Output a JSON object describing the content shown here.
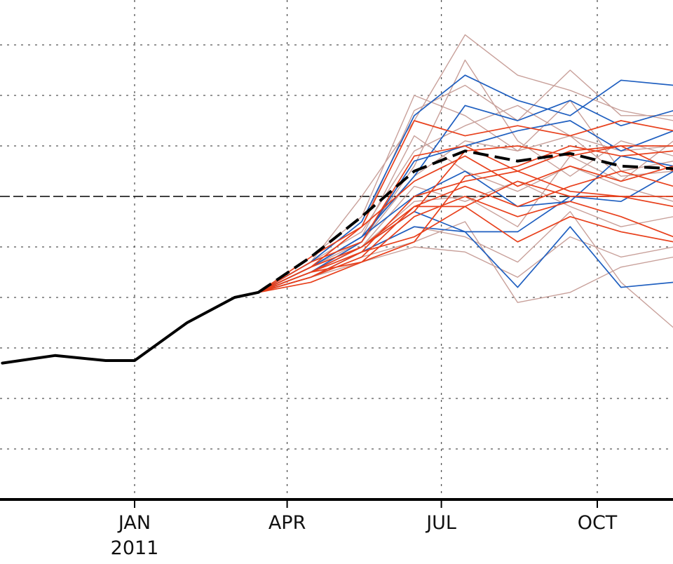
{
  "chart_data": {
    "type": "line",
    "title": "",
    "xlabel": "",
    "ylabel": "",
    "x_tick_labels": [
      {
        "month": "2011-01",
        "label": "JAN",
        "sublabel": "2011"
      },
      {
        "month": "2011-04",
        "label": "APR",
        "sublabel": ""
      },
      {
        "month": "2011-07",
        "label": "JUL",
        "sublabel": ""
      },
      {
        "month": "2011-10",
        "label": "OCT",
        "sublabel": ""
      }
    ],
    "grid": true,
    "reference_line_y": 0,
    "ylim": [
      -6,
      3
    ],
    "colors": {
      "observed": "#000000",
      "ensemble_mean": "#000000",
      "warm_members": "#e8401c",
      "cold_members": "#1f5fc0",
      "neutral_members": "#c8a09a",
      "grid": "#555555"
    },
    "observed": {
      "x": [
        "2010-10-15",
        "2010-11-15",
        "2010-12-15",
        "2011-01-01",
        "2011-02-01",
        "2011-03-01",
        "2011-03-15"
      ],
      "y": [
        -3.3,
        -3.15,
        -3.25,
        -3.25,
        -2.5,
        -2.0,
        -1.9
      ]
    },
    "ensemble_mean": {
      "x": [
        "2011-03-15",
        "2011-04-15",
        "2011-05-15",
        "2011-06-15",
        "2011-07-15",
        "2011-08-15",
        "2011-09-15",
        "2011-10-15",
        "2011-11-15"
      ],
      "y": [
        -1.9,
        -1.2,
        -0.4,
        0.5,
        0.9,
        0.7,
        0.85,
        0.6,
        0.55
      ]
    },
    "members": [
      {
        "group": "warm",
        "y": [
          -1.2,
          -0.6,
          1.5,
          1.2,
          1.4,
          1.2,
          1.5,
          1.3
        ]
      },
      {
        "group": "warm",
        "y": [
          -1.3,
          -0.9,
          0.8,
          1.0,
          0.5,
          0.9,
          1.0,
          1.0
        ]
      },
      {
        "group": "warm",
        "y": [
          -1.4,
          -1.0,
          -0.3,
          0.9,
          1.0,
          0.8,
          1.0,
          0.5
        ]
      },
      {
        "group": "warm",
        "y": [
          -1.5,
          -1.1,
          0.0,
          0.3,
          0.5,
          0.1,
          0.0,
          -0.2
        ]
      },
      {
        "group": "warm",
        "y": [
          -1.5,
          -1.3,
          -0.4,
          0.0,
          -0.4,
          -0.1,
          -0.4,
          -0.8
        ]
      },
      {
        "group": "warm",
        "y": [
          -1.6,
          -1.1,
          -0.8,
          -0.2,
          -0.9,
          -0.4,
          -0.7,
          -0.9
        ]
      },
      {
        "group": "warm",
        "y": [
          -1.5,
          -1.0,
          -0.2,
          0.2,
          -0.2,
          0.2,
          0.5,
          0.2
        ]
      },
      {
        "group": "warm",
        "y": [
          -1.4,
          -0.6,
          0.3,
          0.8,
          0.2,
          0.6,
          0.3,
          0.6
        ]
      },
      {
        "group": "warm",
        "y": [
          -1.6,
          -1.2,
          -0.2,
          -0.2,
          0.3,
          0.0,
          0.0,
          0.0
        ]
      },
      {
        "group": "warm",
        "y": [
          -1.7,
          -1.3,
          -0.9,
          0.4,
          0.6,
          1.0,
          0.8,
          0.9
        ]
      },
      {
        "group": "cold",
        "y": [
          -1.3,
          -0.5,
          1.6,
          2.4,
          1.9,
          1.6,
          2.3,
          2.2
        ]
      },
      {
        "group": "cold",
        "y": [
          -1.4,
          -0.8,
          0.4,
          1.8,
          1.5,
          1.9,
          1.4,
          1.7
        ]
      },
      {
        "group": "cold",
        "y": [
          -1.5,
          -1.0,
          -0.3,
          -0.7,
          -1.8,
          -0.6,
          -1.8,
          -1.7
        ]
      },
      {
        "group": "cold",
        "y": [
          -1.6,
          -1.1,
          -0.6,
          -0.7,
          -0.7,
          0.0,
          -0.1,
          0.5
        ]
      },
      {
        "group": "cold",
        "y": [
          -1.4,
          -0.8,
          0.0,
          0.5,
          -0.2,
          -0.1,
          0.8,
          0.6
        ]
      },
      {
        "group": "cold",
        "y": [
          -1.5,
          -0.9,
          0.7,
          1.0,
          1.3,
          1.5,
          0.9,
          1.3
        ]
      },
      {
        "group": "neutral",
        "y": [
          -1.3,
          0.0,
          1.5,
          3.2,
          2.4,
          2.1,
          1.7,
          1.5
        ]
      },
      {
        "group": "neutral",
        "y": [
          -1.2,
          -0.6,
          1.7,
          2.2,
          1.5,
          2.5,
          1.6,
          1.6
        ]
      },
      {
        "group": "neutral",
        "y": [
          -1.4,
          -0.9,
          0.4,
          1.1,
          0.9,
          1.2,
          0.4,
          0.5
        ]
      },
      {
        "group": "neutral",
        "y": [
          -1.5,
          -1.1,
          -0.6,
          -0.8,
          -1.3,
          -0.3,
          -1.7,
          -2.6
        ]
      },
      {
        "group": "neutral",
        "y": [
          -1.6,
          -1.2,
          -0.9,
          -0.5,
          -2.1,
          -1.9,
          -1.4,
          -1.2
        ]
      },
      {
        "group": "neutral",
        "y": [
          -1.3,
          -0.7,
          0.9,
          1.4,
          1.8,
          1.2,
          0.9,
          1.0
        ]
      },
      {
        "group": "neutral",
        "y": [
          -1.5,
          -1.0,
          0.2,
          -0.1,
          0.3,
          -0.2,
          -0.6,
          -0.4
        ]
      },
      {
        "group": "neutral",
        "y": [
          -1.4,
          -0.8,
          1.2,
          0.5,
          0.1,
          0.6,
          0.2,
          -0.1
        ]
      },
      {
        "group": "neutral",
        "y": [
          -1.2,
          -0.4,
          2.0,
          1.6,
          0.9,
          1.9,
          0.5,
          0.7
        ]
      },
      {
        "group": "neutral",
        "y": [
          -1.6,
          -1.3,
          -1.0,
          -1.1,
          -1.6,
          -0.8,
          -1.2,
          -1.0
        ]
      },
      {
        "group": "neutral",
        "y": [
          -1.4,
          -0.9,
          0.6,
          2.7,
          1.1,
          0.4,
          1.1,
          0.8
        ]
      },
      {
        "group": "neutral",
        "y": [
          -1.5,
          -1.0,
          -0.1,
          0.0,
          -0.6,
          0.8,
          0.3,
          1.1
        ]
      }
    ],
    "member_months": [
      "2011-04-15",
      "2011-05-15",
      "2011-06-15",
      "2011-07-15",
      "2011-08-15",
      "2011-09-15",
      "2011-10-15",
      "2011-11-15"
    ]
  }
}
